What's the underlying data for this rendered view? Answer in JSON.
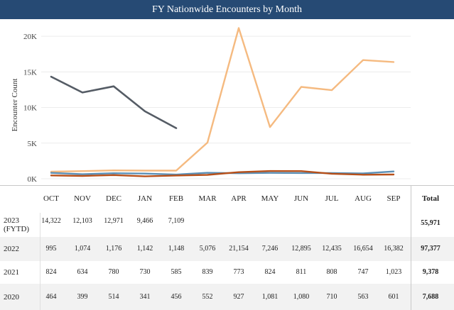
{
  "chart_data": {
    "type": "line",
    "title": "FY Nationwide Encounters by Month",
    "ylabel": "Encounter Count",
    "xlabel": "",
    "categories": [
      "OCT",
      "NOV",
      "DEC",
      "JAN",
      "FEB",
      "MAR",
      "APR",
      "MAY",
      "JUN",
      "JUL",
      "AUG",
      "SEP"
    ],
    "yticks": [
      "0K",
      "5K",
      "10K",
      "15K",
      "20K"
    ],
    "ylim": [
      0,
      22000
    ],
    "total_label": "Total",
    "series": [
      {
        "name": "2023 (FYTD)",
        "label_line1": "2023",
        "label_line2": "(FYTD)",
        "color": "#555c65",
        "values": [
          14322,
          12103,
          12971,
          9466,
          7109,
          null,
          null,
          null,
          null,
          null,
          null,
          null
        ],
        "display": [
          "14,322",
          "12,103",
          "12,971",
          "9,466",
          "7,109",
          "",
          "",
          "",
          "",
          "",
          "",
          ""
        ],
        "total": "55,971"
      },
      {
        "name": "2022",
        "label_line1": "2022",
        "label_line2": "",
        "color": "#f5ba80",
        "values": [
          995,
          1074,
          1176,
          1142,
          1148,
          5076,
          21154,
          7246,
          12895,
          12435,
          16654,
          16382
        ],
        "display": [
          "995",
          "1,074",
          "1,176",
          "1,142",
          "1,148",
          "5,076",
          "21,154",
          "7,246",
          "12,895",
          "12,435",
          "16,654",
          "16,382"
        ],
        "total": "97,377"
      },
      {
        "name": "2021",
        "label_line1": "2021",
        "label_line2": "",
        "color": "#5b8fb5",
        "values": [
          824,
          634,
          780,
          730,
          585,
          839,
          773,
          824,
          811,
          808,
          747,
          1023
        ],
        "display": [
          "824",
          "634",
          "780",
          "730",
          "585",
          "839",
          "773",
          "824",
          "811",
          "808",
          "747",
          "1,023"
        ],
        "total": "9,378"
      },
      {
        "name": "2020",
        "label_line1": "2020",
        "label_line2": "",
        "color": "#b7501a",
        "values": [
          464,
          399,
          514,
          341,
          456,
          552,
          927,
          1081,
          1080,
          710,
          563,
          601
        ],
        "display": [
          "464",
          "399",
          "514",
          "341",
          "456",
          "552",
          "927",
          "1,081",
          "1,080",
          "710",
          "563",
          "601"
        ],
        "total": "7,688"
      }
    ]
  }
}
